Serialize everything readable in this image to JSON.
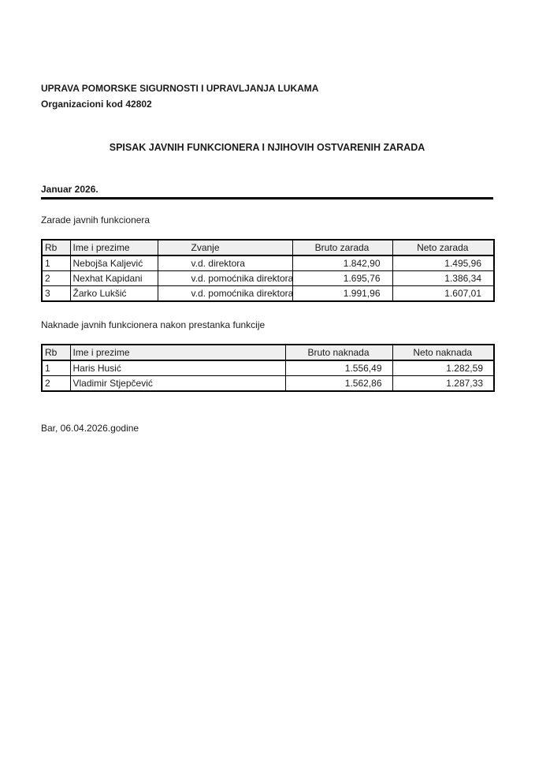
{
  "header": {
    "org_name": "UPRAVA POMORSKE SIGURNOSTI I UPRAVLJANJA LUKAMA",
    "org_code": "Organizacioni kod 42802",
    "title": "SPISAK JAVNIH FUNKCIONERA I NJIHOVIH OSTVARENIH ZARADA",
    "period": "Januar 2026."
  },
  "salaries_table": {
    "caption": "Zarade javnih funkcionera",
    "headers": [
      "Rb",
      "Ime i prezime",
      "Zvanje",
      "Bruto zarada",
      "Neto zarada"
    ],
    "rows": [
      [
        "1",
        "Nebojša Kaljević",
        "v.d. direktora",
        "1.842,90",
        "1.495,96"
      ],
      [
        "2",
        "Nexhat Kapidani",
        "v.d. pomoćnika direktora",
        "1.695,76",
        "1.386,34"
      ],
      [
        "3",
        "Žarko Lukšić",
        "v.d. pomoćnika direktora",
        "1.991,96",
        "1.607,01"
      ]
    ]
  },
  "allowances_table": {
    "caption": "Naknade javnih funkcionera nakon prestanka funkcije",
    "headers": [
      "Rb",
      "Ime i prezime",
      "Bruto naknada",
      "Neto naknada"
    ],
    "rows": [
      [
        "1",
        "Haris Husić",
        "1.556,49",
        "1.282,59"
      ],
      [
        "2",
        "Vladimir Stjepčević",
        "1.562,86",
        "1.287,33"
      ]
    ]
  },
  "footer": {
    "place_date": "Bar, 06.04.2026.godine"
  },
  "colors": {
    "text": "#1b1b1b",
    "table_border": "#000000",
    "header_row_bg": "#efefef",
    "page_bg": "#ffffff"
  }
}
